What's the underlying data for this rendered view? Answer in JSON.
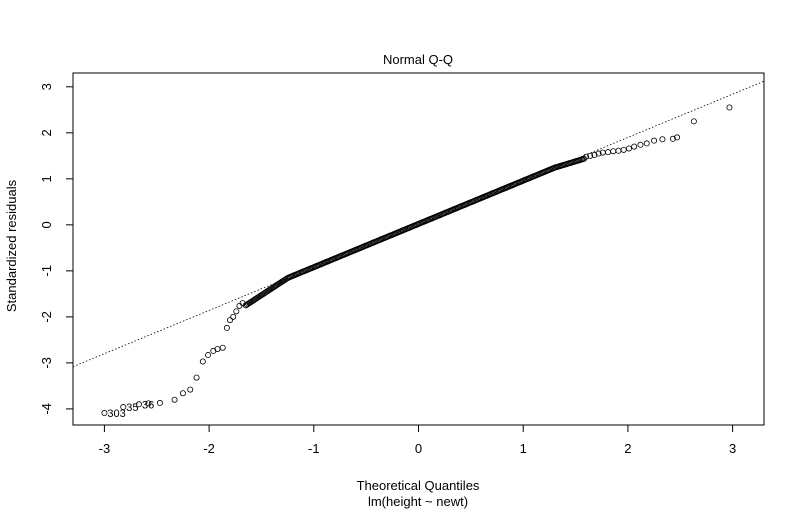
{
  "chart_data": {
    "type": "scatter",
    "title": "Normal Q-Q",
    "xlabel": "Theoretical Quantiles",
    "subtitle": "lm(height ~ newt)",
    "ylabel": "Standardized residuals",
    "xlim": [
      -3.3,
      3.3
    ],
    "ylim": [
      -4.35,
      3.3
    ],
    "x_ticks": [
      -3,
      -2,
      -1,
      0,
      1,
      2,
      3
    ],
    "y_ticks": [
      -4,
      -3,
      -2,
      -1,
      0,
      1,
      2,
      3
    ],
    "x_tick_labels": [
      "-3",
      "-2",
      "-1",
      "0",
      "1",
      "2",
      "3"
    ],
    "y_tick_labels": [
      "-4",
      "-3",
      "-2",
      "-1",
      "0",
      "1",
      "2",
      "3"
    ],
    "reference_line": {
      "slope": 0.94,
      "intercept": 0.02,
      "style": "dotted"
    },
    "outlier_labels": [
      {
        "text": "303",
        "x": -3.0,
        "y": -4.09
      },
      {
        "text": "35",
        "x": -2.82,
        "y": -3.96
      },
      {
        "text": "36",
        "x": -2.67,
        "y": -3.9
      }
    ],
    "point_count": 330,
    "lower_tail": [
      [
        -3.0,
        -4.09
      ],
      [
        -2.82,
        -3.96
      ],
      [
        -2.67,
        -3.9
      ],
      [
        -2.58,
        -3.88
      ],
      [
        -2.47,
        -3.87
      ],
      [
        -2.33,
        -3.8
      ],
      [
        -2.25,
        -3.66
      ],
      [
        -2.18,
        -3.58
      ],
      [
        -2.12,
        -3.32
      ],
      [
        -2.06,
        -2.97
      ],
      [
        -2.01,
        -2.83
      ],
      [
        -1.96,
        -2.74
      ],
      [
        -1.92,
        -2.7
      ],
      [
        -1.87,
        -2.67
      ],
      [
        -1.83,
        -2.24
      ],
      [
        -1.8,
        -2.07
      ],
      [
        -1.77,
        -2.0
      ],
      [
        -1.74,
        -1.88
      ],
      [
        -1.71,
        -1.76
      ],
      [
        -1.68,
        -1.7
      ]
    ],
    "upper_tail": [
      [
        1.6,
        1.48
      ],
      [
        1.64,
        1.5
      ],
      [
        1.68,
        1.52
      ],
      [
        1.72,
        1.55
      ],
      [
        1.76,
        1.57
      ],
      [
        1.81,
        1.58
      ],
      [
        1.86,
        1.6
      ],
      [
        1.91,
        1.61
      ],
      [
        1.96,
        1.63
      ],
      [
        2.01,
        1.66
      ],
      [
        2.06,
        1.7
      ],
      [
        2.12,
        1.74
      ],
      [
        2.18,
        1.77
      ],
      [
        2.25,
        1.83
      ],
      [
        2.33,
        1.86
      ],
      [
        2.43,
        1.87
      ],
      [
        2.47,
        1.9
      ],
      [
        2.63,
        2.25
      ],
      [
        2.97,
        2.55
      ]
    ]
  }
}
